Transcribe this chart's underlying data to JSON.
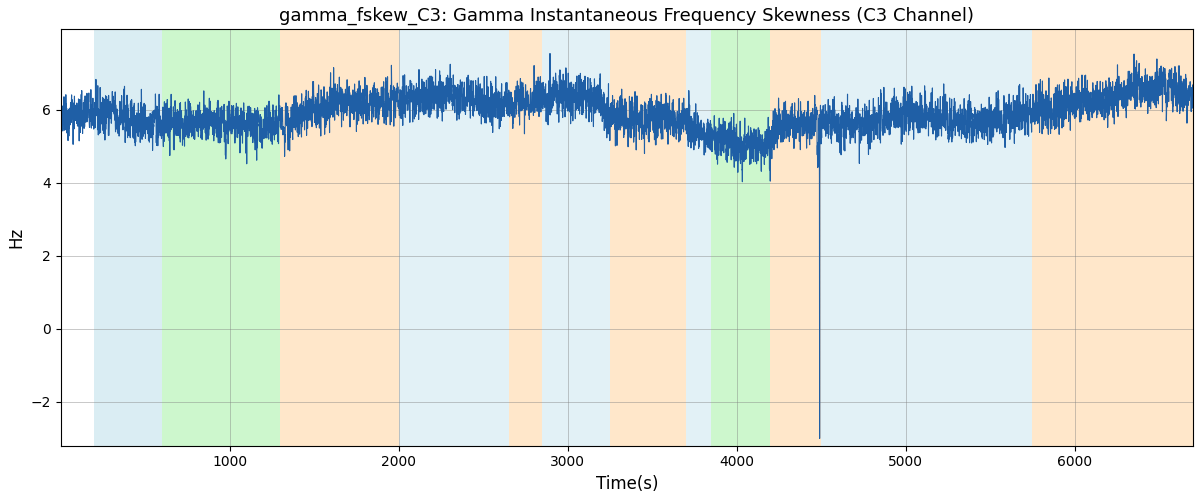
{
  "title": "gamma_fskew_C3: Gamma Instantaneous Frequency Skewness (C3 Channel)",
  "xlabel": "Time(s)",
  "ylabel": "Hz",
  "xlim": [
    0,
    6700
  ],
  "ylim": [
    -3.2,
    8.2
  ],
  "yticks": [
    -2,
    0,
    2,
    4,
    6
  ],
  "xticks": [
    1000,
    2000,
    3000,
    4000,
    5000,
    6000
  ],
  "bg_regions": [
    {
      "xstart": 200,
      "xend": 600,
      "color": "#add8e6",
      "alpha": 0.45
    },
    {
      "xstart": 600,
      "xend": 1300,
      "color": "#90ee90",
      "alpha": 0.45
    },
    {
      "xstart": 1300,
      "xend": 2000,
      "color": "#ffd5a0",
      "alpha": 0.55
    },
    {
      "xstart": 2000,
      "xend": 2650,
      "color": "#add8e6",
      "alpha": 0.35
    },
    {
      "xstart": 2650,
      "xend": 2850,
      "color": "#ffd5a0",
      "alpha": 0.55
    },
    {
      "xstart": 2850,
      "xend": 3250,
      "color": "#add8e6",
      "alpha": 0.35
    },
    {
      "xstart": 3250,
      "xend": 3700,
      "color": "#ffd5a0",
      "alpha": 0.55
    },
    {
      "xstart": 3700,
      "xend": 3850,
      "color": "#add8e6",
      "alpha": 0.35
    },
    {
      "xstart": 3850,
      "xend": 4200,
      "color": "#90ee90",
      "alpha": 0.45
    },
    {
      "xstart": 4200,
      "xend": 4500,
      "color": "#ffd5a0",
      "alpha": 0.55
    },
    {
      "xstart": 4500,
      "xend": 5750,
      "color": "#add8e6",
      "alpha": 0.35
    },
    {
      "xstart": 5750,
      "xend": 6700,
      "color": "#ffd5a0",
      "alpha": 0.55
    }
  ],
  "signal_color": "#1f5fa6",
  "signal_mean": 6.0,
  "spike_x": 4490,
  "spike_y": -3.0,
  "x_start": 0,
  "x_end": 6700,
  "n_points": 6700,
  "seed": 42,
  "line_width": 0.8,
  "title_fontsize": 13,
  "label_fontsize": 12,
  "figsize": [
    12.0,
    5.0
  ],
  "dpi": 100
}
